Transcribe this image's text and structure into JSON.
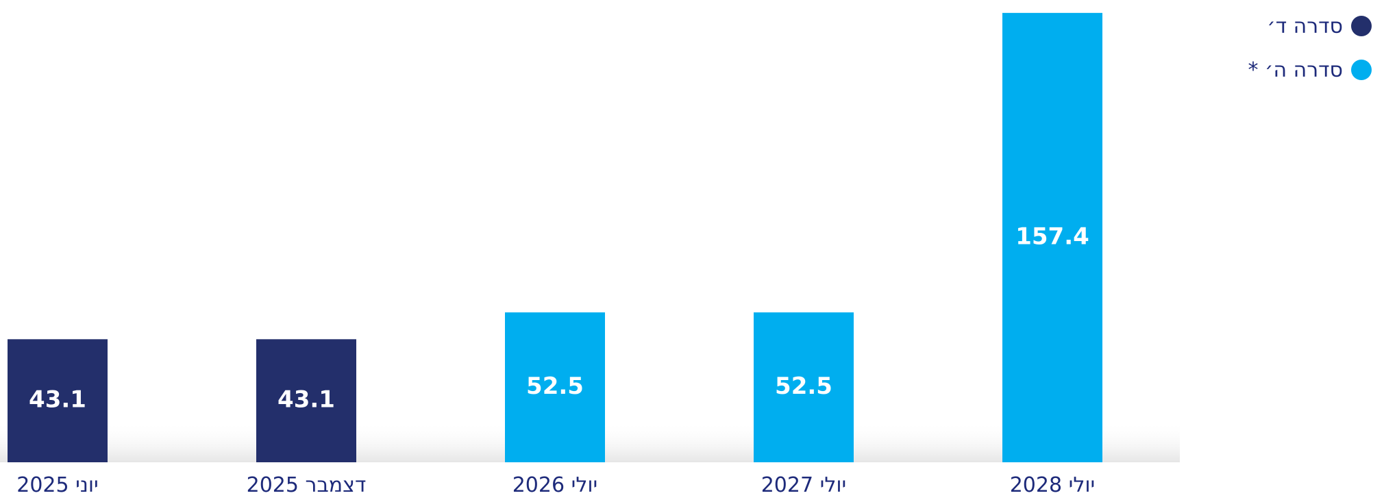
{
  "colors": {
    "series_d": "#232f6b",
    "series_h": "#00aeef",
    "label_text": "#1d2a7a",
    "bar_text": "#ffffff"
  },
  "legend": {
    "items": [
      {
        "label": "סדרה ד׳",
        "color": "#232f6b"
      },
      {
        "label": "סדרה ה׳ *",
        "color": "#00aeef"
      }
    ]
  },
  "chart_data": {
    "type": "bar",
    "title": "",
    "xlabel": "",
    "ylabel": "",
    "legend_position": "top-right",
    "grid": false,
    "ylim": [
      0,
      160
    ],
    "categories": [
      "יוני 2025",
      "דצמבר 2025",
      "יולי 2026",
      "יולי 2027",
      "יולי 2028"
    ],
    "series": [
      {
        "name": "סדרה ד׳",
        "color": "#232f6b",
        "values": [
          43.1,
          43.1,
          null,
          null,
          null
        ]
      },
      {
        "name": "סדרה ה׳ *",
        "color": "#00aeef",
        "values": [
          null,
          null,
          52.5,
          52.5,
          157.4
        ]
      }
    ],
    "data_labels": [
      "43.1",
      "43.1",
      "52.5",
      "52.5",
      "157.4"
    ]
  }
}
